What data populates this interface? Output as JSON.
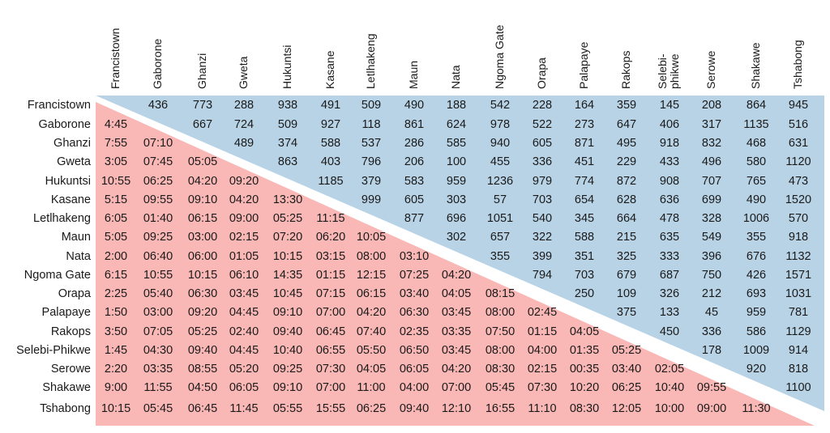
{
  "places": [
    "Francistown",
    "Gaborone",
    "Ghanzi",
    "Gweta",
    "Hukuntsi",
    "Kasane",
    "Letlhakeng",
    "Maun",
    "Nata",
    "Ngoma Gate",
    "Orapa",
    "Palapaye",
    "Rakops",
    "Selebi-Phikwe",
    "Serowe",
    "Shakawe",
    "Tshabong"
  ],
  "column_headers": [
    "Francistown",
    "Gaborone",
    "Ghanzi",
    "Gweta",
    "Hukuntsi",
    "Kasane",
    "Letlhakeng",
    "Maun",
    "Nata",
    "Ngoma Gate",
    "Orapa",
    "Palapaye",
    "Rakops",
    "Selebi-\nphikwe",
    "Serowe",
    "Shakawe",
    "Tshabong"
  ],
  "colors": {
    "distance_area": "#b8d3e6",
    "time_area": "#f9b7b5",
    "divider": "#ffffff"
  },
  "distances_km": [
    [
      "436",
      "773",
      "288",
      "938",
      "491",
      "509",
      "490",
      "188",
      "542",
      "228",
      "164",
      "359",
      "145",
      "208",
      "864",
      "945"
    ],
    [
      "667",
      "724",
      "509",
      "927",
      "118",
      "861",
      "624",
      "978",
      "522",
      "273",
      "647",
      "406",
      "317",
      "1135",
      "516"
    ],
    [
      "489",
      "374",
      "588",
      "537",
      "286",
      "585",
      "940",
      "605",
      "871",
      "495",
      "918",
      "832",
      "468",
      "631"
    ],
    [
      "863",
      "403",
      "796",
      "206",
      "100",
      "455",
      "336",
      "451",
      "229",
      "433",
      "496",
      "580",
      "1120"
    ],
    [
      "1185",
      "379",
      "583",
      "959",
      "1236",
      "979",
      "774",
      "872",
      "908",
      "707",
      "765",
      "473"
    ],
    [
      "999",
      "605",
      "303",
      "57",
      "703",
      "654",
      "628",
      "636",
      "699",
      "490",
      "1520"
    ],
    [
      "877",
      "696",
      "1051",
      "540",
      "345",
      "664",
      "478",
      "328",
      "1006",
      "570"
    ],
    [
      "302",
      "657",
      "322",
      "588",
      "215",
      "635",
      "549",
      "355",
      "918"
    ],
    [
      "355",
      "399",
      "351",
      "325",
      "333",
      "396",
      "676",
      "1132"
    ],
    [
      "794",
      "703",
      "679",
      "687",
      "750",
      "426",
      "1571"
    ],
    [
      "250",
      "109",
      "326",
      "212",
      "693",
      "1031"
    ],
    [
      "375",
      "133",
      "45",
      "959",
      "781"
    ],
    [
      "450",
      "336",
      "586",
      "1129"
    ],
    [
      "178",
      "1009",
      "914"
    ],
    [
      "920",
      "818"
    ],
    [
      "1100"
    ]
  ],
  "travel_times": [
    [],
    [
      "4:45"
    ],
    [
      "7:55",
      "07:10"
    ],
    [
      "3:05",
      "07:45",
      "05:05"
    ],
    [
      "10:55",
      "06:25",
      "04:20",
      "09:20"
    ],
    [
      "5:15",
      "09:55",
      "09:10",
      "04:20",
      "13:30"
    ],
    [
      "6:05",
      "01:40",
      "06:15",
      "09:00",
      "05:25",
      "11:15"
    ],
    [
      "5:05",
      "09:25",
      "03:00",
      "02:15",
      "07:20",
      "06:20",
      "10:05"
    ],
    [
      "2:00",
      "06:40",
      "06:00",
      "01:05",
      "10:15",
      "03:15",
      "08:00",
      "03:10"
    ],
    [
      "6:15",
      "10:55",
      "10:15",
      "06:10",
      "14:35",
      "01:15",
      "12:15",
      "07:25",
      "04:20"
    ],
    [
      "2:25",
      "05:40",
      "06:30",
      "03:45",
      "10:45",
      "07:15",
      "06:15",
      "03:40",
      "04:05",
      "08:15"
    ],
    [
      "1:50",
      "03:00",
      "09:20",
      "04:45",
      "09:10",
      "07:00",
      "04:20",
      "06:30",
      "03:45",
      "08:00",
      "02:45"
    ],
    [
      "3:50",
      "07:05",
      "05:25",
      "02:40",
      "09:40",
      "06:45",
      "07:40",
      "02:35",
      "03:35",
      "07:50",
      "01:15",
      "04:05"
    ],
    [
      "1:45",
      "04:30",
      "09:40",
      "04:45",
      "10:40",
      "06:55",
      "05:50",
      "06:50",
      "03:45",
      "08:00",
      "04:00",
      "01:35",
      "05:25"
    ],
    [
      "2:20",
      "03:35",
      "08:55",
      "05:20",
      "09:25",
      "07:30",
      "04:05",
      "06:05",
      "04:20",
      "08:30",
      "02:15",
      "00:35",
      "03:40",
      "02:05"
    ],
    [
      "9:00",
      "11:55",
      "04:50",
      "06:05",
      "09:10",
      "07:00",
      "11:00",
      "04:00",
      "07:00",
      "05:45",
      "07:30",
      "10:20",
      "06:25",
      "10:40",
      "09:55"
    ],
    [
      "10:15",
      "05:45",
      "06:45",
      "11:45",
      "05:55",
      "15:55",
      "06:25",
      "09:40",
      "12:10",
      "16:55",
      "11:10",
      "08:30",
      "12:05",
      "10:00",
      "09:00",
      "11:30"
    ]
  ]
}
